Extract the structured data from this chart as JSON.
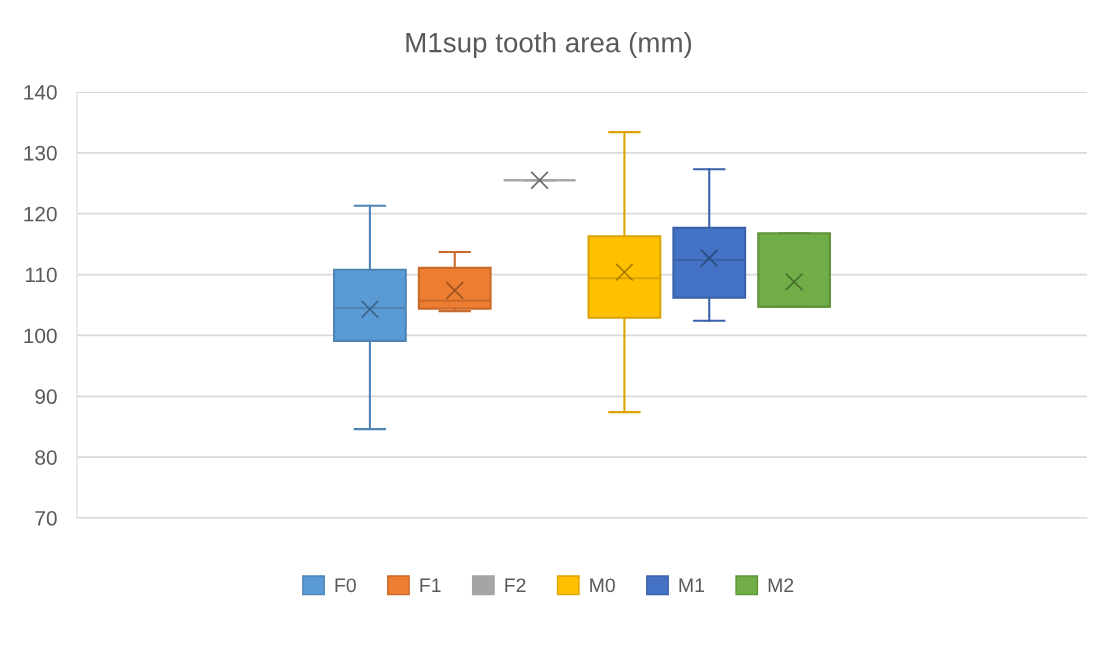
{
  "chart_data": {
    "type": "box",
    "title": "M1sup tooth area (mm)",
    "categories": [
      null
    ],
    "series": [
      {
        "name": "F0",
        "color": "#5b9bd5",
        "boxes": [
          {
            "low": 84.6,
            "q1": 99.1,
            "median": 104.5,
            "q3": 110.8,
            "high": 121.3,
            "mean": 104.3
          }
        ]
      },
      {
        "name": "F1",
        "color": "#ed7d31",
        "boxes": [
          {
            "low": 104.0,
            "q1": 104.4,
            "median": 105.7,
            "q3": 111.1,
            "high": 113.7,
            "mean": 107.4
          }
        ]
      },
      {
        "name": "F2",
        "color": "#a5a5a5",
        "boxes": [
          {
            "low": 125.5,
            "q1": 125.5,
            "median": 125.5,
            "q3": 125.5,
            "high": 125.5,
            "mean": 125.5
          }
        ]
      },
      {
        "name": "M0",
        "color": "#ffc000",
        "boxes": [
          {
            "low": 87.4,
            "q1": 102.9,
            "median": 109.4,
            "q3": 116.3,
            "high": 133.4,
            "mean": 110.4
          }
        ]
      },
      {
        "name": "M1",
        "color": "#4472c4",
        "boxes": [
          {
            "low": 102.4,
            "q1": 106.2,
            "median": 112.4,
            "q3": 117.7,
            "high": 127.3,
            "mean": 112.7
          }
        ]
      },
      {
        "name": "M2",
        "color": "#70ad47",
        "boxes": [
          {
            "low": 104.7,
            "q1": 104.7,
            "median": 104.7,
            "q3": 116.8,
            "high": 116.8,
            "mean": 108.8
          }
        ]
      }
    ],
    "ylim": [
      70,
      140
    ],
    "yticks": [
      70,
      80,
      90,
      100,
      110,
      120,
      130,
      140
    ],
    "grid": "y",
    "legend": "bottom",
    "marker": "cross"
  }
}
